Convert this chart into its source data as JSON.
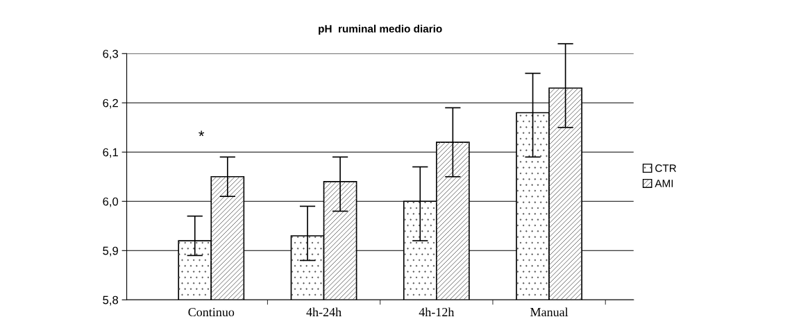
{
  "chart_data": {
    "type": "bar",
    "title": "pH  ruminal medio diario",
    "categories": [
      "Continuo",
      "4h-24h",
      "4h-12h",
      "Manual"
    ],
    "series": [
      {
        "name": "CTR",
        "color": "#ffffff",
        "values": [
          5.92,
          5.93,
          6.0,
          6.18
        ],
        "errors": [
          [
            5.89,
            5.97
          ],
          [
            5.88,
            5.99
          ],
          [
            5.92,
            6.07
          ],
          [
            6.09,
            6.26
          ]
        ]
      },
      {
        "name": "AMI",
        "color": "#ffffff",
        "values": [
          6.05,
          6.04,
          6.12,
          6.23
        ],
        "errors": [
          [
            6.01,
            6.09
          ],
          [
            5.98,
            6.09
          ],
          [
            6.05,
            6.19
          ],
          [
            6.15,
            6.32
          ]
        ]
      }
    ],
    "ylim": [
      5.8,
      6.3
    ],
    "yticks": [
      {
        "value": 5.8,
        "label": "5,8"
      },
      {
        "value": 5.9,
        "label": "5,9"
      },
      {
        "value": 6.0,
        "label": "6,0"
      },
      {
        "value": 6.1,
        "label": "6,1"
      },
      {
        "value": 6.2,
        "label": "6,2"
      },
      {
        "value": 6.3,
        "label": "6,3"
      }
    ],
    "grid": "y",
    "legend": "right",
    "annotations": [
      "*"
    ]
  }
}
